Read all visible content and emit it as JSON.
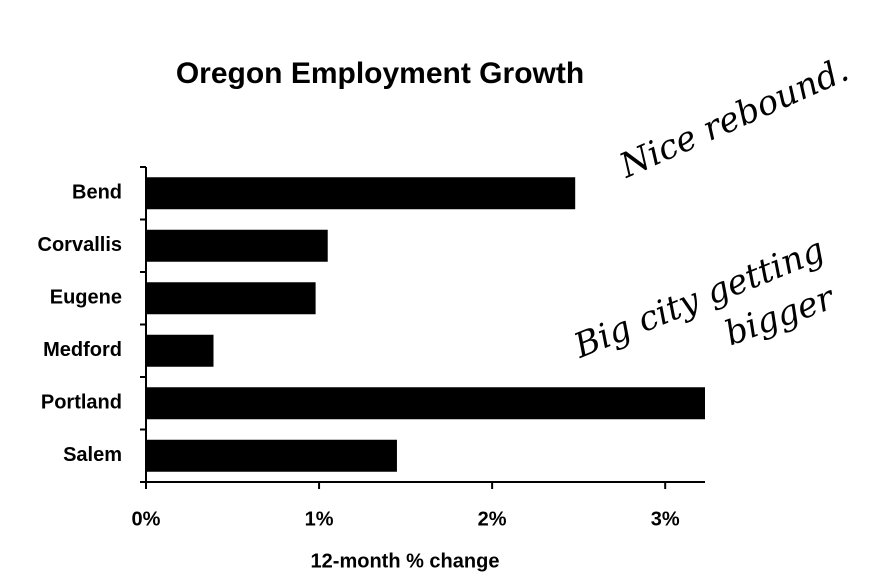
{
  "chart_data": {
    "type": "hbar",
    "title": "Oregon Employment Growth",
    "categories": [
      "Bend",
      "Corvallis",
      "Eugene",
      "Medford",
      "Portland",
      "Salem"
    ],
    "values": [
      2.48,
      1.05,
      0.98,
      0.39,
      3.23,
      1.45
    ],
    "color": "#000000",
    "xlabel": "12-month % change",
    "xlim": [
      0,
      3.23
    ],
    "xticks": [
      {
        "value": 0,
        "label": "0%"
      },
      {
        "value": 1,
        "label": "1%"
      },
      {
        "value": 2,
        "label": "2%"
      },
      {
        "value": 3,
        "label": "3%"
      }
    ],
    "grid": false,
    "annotations": [
      "Nice rebound.",
      "Big city getting",
      "bigger"
    ]
  }
}
